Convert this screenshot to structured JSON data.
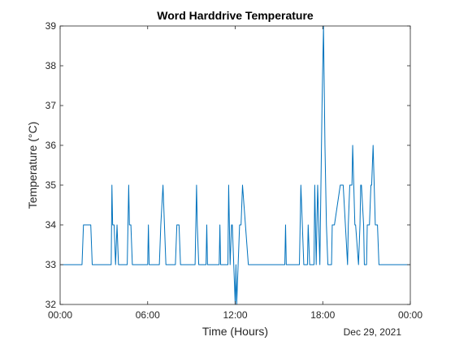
{
  "chart_data": {
    "type": "line",
    "title": "Word Harddrive Temperature",
    "xlabel": "Time (Hours)",
    "ylabel": "Temperature (°C)",
    "date_label": "Dec 29, 2021",
    "x_unit": "hours",
    "xlim": [
      0,
      24
    ],
    "ylim": [
      32,
      39
    ],
    "x_ticks": [
      0,
      6,
      12,
      18,
      24
    ],
    "x_tick_labels": [
      "00:00",
      "06:00",
      "12:00",
      "18:00",
      "00:00"
    ],
    "y_ticks": [
      32,
      33,
      34,
      35,
      36,
      37,
      38,
      39
    ],
    "y_tick_labels": [
      "32",
      "33",
      "34",
      "35",
      "36",
      "37",
      "38",
      "39"
    ],
    "grid": false,
    "line_color": "#0072BD",
    "series": [
      {
        "x": [
          0,
          1.5,
          1.6,
          2.1,
          2.2,
          3.5,
          3.55,
          3.6,
          3.7,
          3.8,
          3.9,
          4.0,
          4.05,
          4.1,
          4.2,
          4.6,
          4.7,
          4.75,
          4.85,
          4.95,
          5.05,
          6.0,
          6.05,
          6.1,
          6.8,
          6.9,
          7.05,
          7.15,
          7.25,
          7.9,
          8.0,
          8.15,
          8.25,
          9.25,
          9.35,
          9.4,
          9.5,
          10.0,
          10.05,
          10.1,
          10.9,
          10.95,
          11.0,
          11.5,
          11.55,
          11.65,
          11.75,
          11.8,
          11.9,
          12.0,
          12.05,
          12.1,
          12.2,
          12.3,
          12.4,
          12.5,
          12.9,
          13.0,
          13.1,
          13.2,
          15.4,
          15.45,
          15.5,
          16.4,
          16.5,
          16.6,
          16.7,
          16.95,
          17.0,
          17.1,
          17.4,
          17.45,
          17.55,
          17.6,
          17.65,
          17.8,
          17.95,
          18.05,
          18.15,
          18.25,
          18.35,
          18.6,
          18.65,
          18.8,
          19.2,
          19.3,
          19.4,
          19.7,
          19.75,
          19.85,
          20.0,
          20.05,
          20.2,
          20.25,
          20.45,
          20.55,
          20.6,
          20.65,
          20.8,
          20.85,
          21.0,
          21.05,
          21.2,
          21.3,
          21.35,
          21.45,
          21.6,
          21.7,
          21.75,
          21.85,
          22.0,
          22.05,
          22.15,
          22.35,
          23.9,
          24.0
        ],
        "y": [
          33,
          33,
          34,
          34,
          33,
          33,
          35,
          34,
          34,
          33,
          34,
          33,
          33,
          33,
          33,
          33,
          35,
          34,
          34,
          33,
          33,
          33,
          34,
          33,
          33,
          34,
          35,
          34,
          33,
          33,
          34,
          34,
          33,
          33,
          35,
          34,
          33,
          33,
          34,
          33,
          33,
          34,
          33,
          33,
          35,
          33,
          34,
          34,
          33,
          32,
          33,
          32,
          33,
          34,
          34,
          35,
          33,
          33,
          33,
          33,
          33,
          34,
          33,
          33,
          35,
          34,
          33,
          33,
          34,
          33,
          33,
          35,
          33,
          34,
          35,
          33,
          37,
          39,
          36,
          34,
          33,
          33,
          34,
          34,
          35,
          35,
          35,
          33,
          34,
          35,
          35,
          36,
          34,
          34,
          33,
          34,
          35,
          35,
          34,
          33,
          33,
          34,
          34,
          35,
          35,
          36,
          34,
          34,
          34,
          33,
          33,
          33,
          33,
          33,
          33,
          33
        ]
      }
    ]
  }
}
